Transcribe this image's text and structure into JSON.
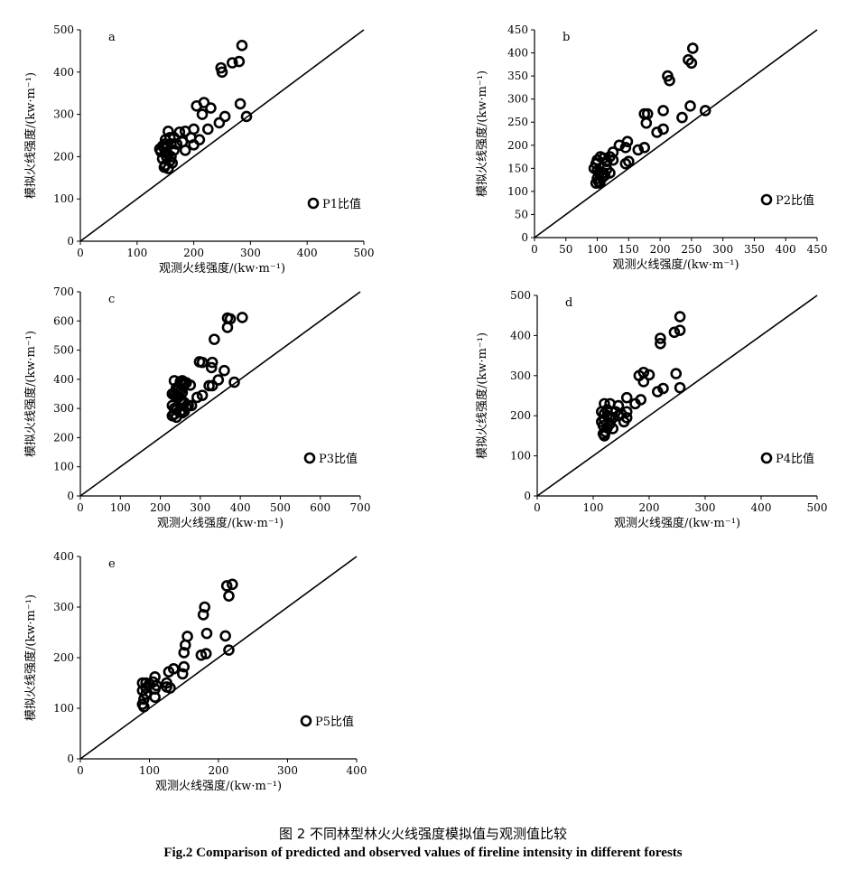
{
  "figure": {
    "caption_cn": "图 2    不同林型林火火线强度模拟值与观测值比较",
    "caption_en": "Fig.2    Comparison of predicted and observed values of fireline intensity in different forests"
  },
  "chart_data": [
    {
      "type": "scatter",
      "panel": "a",
      "xlabel": "观测火线强度/(kw·m⁻¹)",
      "ylabel": "模拟火线强度/(kw·m⁻¹)",
      "xlim": [
        0,
        500
      ],
      "ylim": [
        0,
        500
      ],
      "xticks": [
        0,
        100,
        200,
        300,
        400,
        500
      ],
      "yticks": [
        0,
        100,
        200,
        300,
        400,
        500
      ],
      "legend": "P1比值",
      "legend_position": "bottom-right",
      "reference_line": "y=x",
      "series": [
        {
          "points": [
            [
              285,
              463
            ],
            [
              280,
              425
            ],
            [
              268,
              422
            ],
            [
              248,
              410
            ],
            [
              250,
              400
            ],
            [
              293,
              295
            ],
            [
              282,
              325
            ],
            [
              218,
              328
            ],
            [
              205,
              320
            ],
            [
              230,
              315
            ],
            [
              215,
              300
            ],
            [
              255,
              295
            ],
            [
              245,
              280
            ],
            [
              225,
              265
            ],
            [
              200,
              265
            ],
            [
              185,
              260
            ],
            [
              175,
              258
            ],
            [
              195,
              245
            ],
            [
              210,
              240
            ],
            [
              180,
              235
            ],
            [
              170,
              230
            ],
            [
              200,
              228
            ],
            [
              185,
              215
            ],
            [
              155,
              260
            ],
            [
              150,
              240
            ],
            [
              145,
              225
            ],
            [
              148,
              220
            ],
            [
              160,
              230
            ],
            [
              165,
              215
            ],
            [
              150,
              210
            ],
            [
              155,
              205
            ],
            [
              145,
              195
            ],
            [
              158,
              190
            ],
            [
              162,
              185
            ],
            [
              150,
              180
            ],
            [
              148,
              175
            ],
            [
              155,
              172
            ],
            [
              152,
              200
            ],
            [
              160,
              200
            ],
            [
              140,
              218
            ],
            [
              165,
              245
            ],
            [
              158,
              245
            ],
            [
              150,
              230
            ],
            [
              142,
              212
            ]
          ]
        }
      ]
    },
    {
      "type": "scatter",
      "panel": "b",
      "xlabel": "观测火线强度/(kw·m⁻¹)",
      "ylabel": "模拟火线强度/(kw·m⁻¹)",
      "xlim": [
        0,
        450
      ],
      "ylim": [
        0,
        450
      ],
      "xticks": [
        0,
        50,
        100,
        150,
        200,
        250,
        300,
        350,
        400,
        450
      ],
      "yticks": [
        0,
        50,
        100,
        150,
        200,
        250,
        300,
        350,
        400,
        450
      ],
      "legend": "P2比值",
      "legend_position": "bottom-right",
      "reference_line": "y=x",
      "series": [
        {
          "points": [
            [
              252,
              410
            ],
            [
              245,
              385
            ],
            [
              250,
              378
            ],
            [
              212,
              350
            ],
            [
              215,
              340
            ],
            [
              272,
              275
            ],
            [
              248,
              285
            ],
            [
              205,
              275
            ],
            [
              175,
              268
            ],
            [
              180,
              268
            ],
            [
              178,
              248
            ],
            [
              235,
              260
            ],
            [
              205,
              235
            ],
            [
              195,
              228
            ],
            [
              175,
              195
            ],
            [
              165,
              190
            ],
            [
              148,
              208
            ],
            [
              135,
              200
            ],
            [
              145,
              195
            ],
            [
              150,
              165
            ],
            [
              145,
              160
            ],
            [
              125,
              185
            ],
            [
              120,
              175
            ],
            [
              125,
              168
            ],
            [
              115,
              165
            ],
            [
              110,
              172
            ],
            [
              105,
              175
            ],
            [
              100,
              168
            ],
            [
              98,
              160
            ],
            [
              95,
              150
            ],
            [
              100,
              145
            ],
            [
              103,
              140
            ],
            [
              110,
              140
            ],
            [
              115,
              148
            ],
            [
              120,
              140
            ],
            [
              100,
              128
            ],
            [
              102,
              122
            ],
            [
              98,
              118
            ],
            [
              104,
              118
            ],
            [
              108,
              130
            ],
            [
              112,
              135
            ]
          ]
        }
      ]
    },
    {
      "type": "scatter",
      "panel": "c",
      "xlabel": "观测火线强度/(kw·m⁻¹)",
      "ylabel": "模拟火线强度/(kw·m⁻¹)",
      "xlim": [
        0,
        700
      ],
      "ylim": [
        0,
        700
      ],
      "xticks": [
        0,
        100,
        200,
        300,
        400,
        500,
        600,
        700
      ],
      "yticks": [
        0,
        100,
        200,
        300,
        400,
        500,
        600,
        700
      ],
      "legend": "P3比值",
      "legend_position": "bottom-right",
      "reference_line": "y=x",
      "series": [
        {
          "points": [
            [
              405,
              612
            ],
            [
              368,
              610
            ],
            [
              375,
              607
            ],
            [
              368,
              578
            ],
            [
              335,
              537
            ],
            [
              298,
              460
            ],
            [
              305,
              458
            ],
            [
              330,
              458
            ],
            [
              328,
              440
            ],
            [
              360,
              430
            ],
            [
              385,
              390
            ],
            [
              345,
              398
            ],
            [
              322,
              378
            ],
            [
              330,
              378
            ],
            [
              305,
              345
            ],
            [
              292,
              338
            ],
            [
              278,
              310
            ],
            [
              270,
              310
            ],
            [
              265,
              305
            ],
            [
              235,
              395
            ],
            [
              250,
              392
            ],
            [
              255,
              395
            ],
            [
              260,
              390
            ],
            [
              265,
              388
            ],
            [
              275,
              380
            ],
            [
              240,
              370
            ],
            [
              245,
              365
            ],
            [
              250,
              360
            ],
            [
              255,
              355
            ],
            [
              230,
              350
            ],
            [
              235,
              345
            ],
            [
              240,
              340
            ],
            [
              245,
              338
            ],
            [
              250,
              330
            ],
            [
              255,
              325
            ],
            [
              260,
              320
            ],
            [
              230,
              310
            ],
            [
              235,
              300
            ],
            [
              240,
              295
            ],
            [
              250,
              290
            ],
            [
              255,
              285
            ],
            [
              260,
              290
            ],
            [
              235,
              280
            ],
            [
              230,
              275
            ],
            [
              240,
              270
            ]
          ]
        }
      ]
    },
    {
      "type": "scatter",
      "panel": "d",
      "xlabel": "观测火线强度/(kw·m⁻¹)",
      "ylabel": "模拟火线强度/(kw·m⁻¹)",
      "xlim": [
        0,
        500
      ],
      "ylim": [
        0,
        500
      ],
      "xticks": [
        0,
        100,
        200,
        300,
        400,
        500
      ],
      "yticks": [
        0,
        100,
        200,
        300,
        400,
        500
      ],
      "legend": "P4比值",
      "legend_position": "bottom-right",
      "reference_line": "y=x",
      "series": [
        {
          "points": [
            [
              255,
              447
            ],
            [
              255,
              413
            ],
            [
              245,
              408
            ],
            [
              220,
              393
            ],
            [
              220,
              380
            ],
            [
              248,
              305
            ],
            [
              255,
              270
            ],
            [
              190,
              308
            ],
            [
              200,
              302
            ],
            [
              182,
              300
            ],
            [
              190,
              285
            ],
            [
              225,
              268
            ],
            [
              215,
              260
            ],
            [
              185,
              240
            ],
            [
              175,
              230
            ],
            [
              160,
              245
            ],
            [
              145,
              225
            ],
            [
              160,
              210
            ],
            [
              150,
              205
            ],
            [
              160,
              195
            ],
            [
              155,
              185
            ],
            [
              130,
              230
            ],
            [
              120,
              230
            ],
            [
              125,
              215
            ],
            [
              115,
              210
            ],
            [
              120,
              205
            ],
            [
              125,
              200
            ],
            [
              130,
              198
            ],
            [
              135,
              195
            ],
            [
              120,
              190
            ],
            [
              115,
              185
            ],
            [
              118,
              175
            ],
            [
              125,
              170
            ],
            [
              135,
              168
            ],
            [
              122,
              160
            ],
            [
              118,
              155
            ],
            [
              120,
              150
            ],
            [
              140,
              210
            ],
            [
              145,
              200
            ],
            [
              130,
              180
            ]
          ]
        }
      ]
    },
    {
      "type": "scatter",
      "panel": "e",
      "xlabel": "观测火线强度/(kw·m⁻¹)",
      "ylabel": "模拟火线强度/(kw·m⁻¹)",
      "xlim": [
        0,
        400
      ],
      "ylim": [
        0,
        400
      ],
      "xticks": [
        0,
        100,
        200,
        300,
        400
      ],
      "yticks": [
        0,
        100,
        200,
        300,
        400
      ],
      "legend": "P5比值",
      "legend_position": "bottom-right",
      "reference_line": "y=x",
      "series": [
        {
          "points": [
            [
              220,
              345
            ],
            [
              212,
              342
            ],
            [
              215,
              322
            ],
            [
              180,
              300
            ],
            [
              178,
              285
            ],
            [
              183,
              248
            ],
            [
              210,
              243
            ],
            [
              215,
              215
            ],
            [
              182,
              208
            ],
            [
              175,
              205
            ],
            [
              150,
              210
            ],
            [
              152,
              225
            ],
            [
              155,
              242
            ],
            [
              150,
              182
            ],
            [
              148,
              168
            ],
            [
              135,
              178
            ],
            [
              128,
              172
            ],
            [
              125,
              150
            ],
            [
              125,
              142
            ],
            [
              130,
              140
            ],
            [
              108,
              162
            ],
            [
              105,
              152
            ],
            [
              110,
              145
            ],
            [
              108,
              138
            ],
            [
              108,
              122
            ],
            [
              95,
              150
            ],
            [
              90,
              150
            ],
            [
              100,
              148
            ],
            [
              95,
              140
            ],
            [
              90,
              135
            ],
            [
              95,
              128
            ],
            [
              92,
              118
            ],
            [
              90,
              108
            ],
            [
              92,
              103
            ]
          ]
        }
      ]
    }
  ]
}
